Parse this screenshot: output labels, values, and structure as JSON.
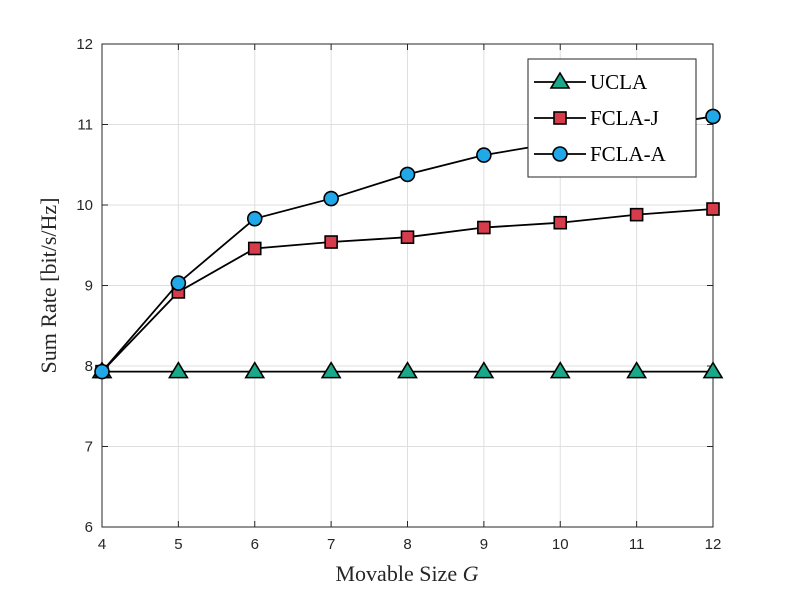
{
  "chart_data": {
    "type": "line",
    "title": "",
    "xlabel": "Movable Size",
    "xlabel_var": "G",
    "ylabel": "Sum Rate [bit/s/Hz]",
    "x": [
      4,
      5,
      6,
      7,
      8,
      9,
      10,
      11,
      12
    ],
    "xlim": [
      4,
      12
    ],
    "ylim": [
      6,
      12
    ],
    "xticks": [
      "4",
      "5",
      "6",
      "7",
      "8",
      "9",
      "10",
      "11",
      "12"
    ],
    "yticks": [
      "6",
      "7",
      "8",
      "9",
      "10",
      "11",
      "12"
    ],
    "grid": true,
    "legend_position": "top-right",
    "series": [
      {
        "name": "UCLA",
        "marker": "triangle",
        "color": "#1aa88a",
        "values": [
          7.93,
          7.93,
          7.93,
          7.93,
          7.93,
          7.93,
          7.93,
          7.93,
          7.93
        ]
      },
      {
        "name": "FCLA-J",
        "marker": "square",
        "color": "#d63c4c",
        "values": [
          7.93,
          8.92,
          9.46,
          9.54,
          9.6,
          9.72,
          9.78,
          9.88,
          9.95
        ]
      },
      {
        "name": "FCLA-A",
        "marker": "circle",
        "color": "#20a8e8",
        "values": [
          7.93,
          9.03,
          9.83,
          10.08,
          10.38,
          10.62,
          10.78,
          10.95,
          11.1
        ]
      }
    ]
  }
}
